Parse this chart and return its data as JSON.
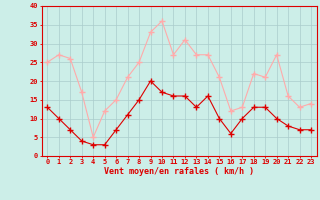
{
  "x": [
    0,
    1,
    2,
    3,
    4,
    5,
    6,
    7,
    8,
    9,
    10,
    11,
    12,
    13,
    14,
    15,
    16,
    17,
    18,
    19,
    20,
    21,
    22,
    23
  ],
  "moyen": [
    13,
    10,
    7,
    4,
    3,
    3,
    7,
    11,
    15,
    20,
    17,
    16,
    16,
    13,
    16,
    10,
    6,
    10,
    13,
    13,
    10,
    8,
    7,
    7
  ],
  "rafales": [
    25,
    27,
    26,
    17,
    5,
    12,
    15,
    21,
    25,
    33,
    36,
    27,
    31,
    27,
    27,
    21,
    12,
    13,
    22,
    21,
    27,
    16,
    13,
    14
  ],
  "moyen_color": "#dd0000",
  "rafales_color": "#ffaaaa",
  "bg_color": "#cceee8",
  "grid_color": "#aacccc",
  "xlabel": "Vent moyen/en rafales ( km/h )",
  "yticks": [
    0,
    5,
    10,
    15,
    20,
    25,
    30,
    35,
    40
  ],
  "ylim_min": 0,
  "ylim_max": 40,
  "xlim_min": -0.5,
  "xlim_max": 23.5,
  "tick_fontsize": 5,
  "xlabel_fontsize": 6
}
